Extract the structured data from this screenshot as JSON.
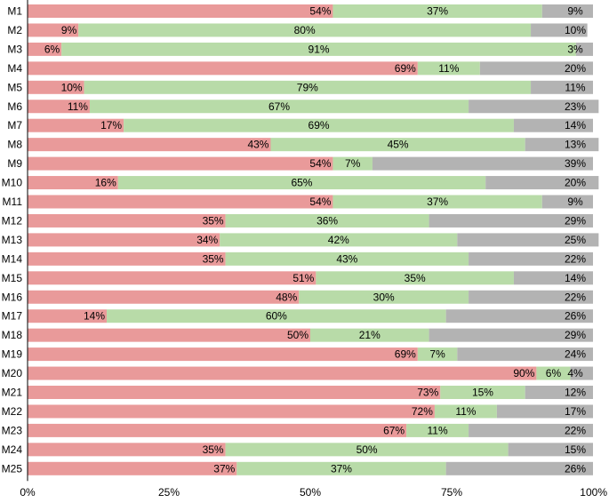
{
  "chart_data": {
    "type": "bar",
    "orientation": "horizontal",
    "stacked": true,
    "percent_axis": true,
    "categories": [
      "M1",
      "M2",
      "M3",
      "M4",
      "M5",
      "M6",
      "M7",
      "M8",
      "M9",
      "M10",
      "M11",
      "M12",
      "M13",
      "M14",
      "M15",
      "M16",
      "M17",
      "M18",
      "M19",
      "M20",
      "M21",
      "M22",
      "M23",
      "M24",
      "M25"
    ],
    "series": [
      {
        "color": "#e99a9a",
        "values": [
          54,
          9,
          6,
          69,
          10,
          11,
          17,
          43,
          54,
          16,
          54,
          35,
          34,
          35,
          51,
          48,
          14,
          50,
          69,
          90,
          73,
          72,
          67,
          35,
          37
        ]
      },
      {
        "color": "#b8dba8",
        "values": [
          37,
          80,
          91,
          11,
          79,
          67,
          69,
          45,
          7,
          65,
          37,
          36,
          42,
          43,
          35,
          30,
          60,
          21,
          7,
          6,
          15,
          11,
          11,
          50,
          37
        ]
      },
      {
        "color": "#b3b3b3",
        "values": [
          9,
          10,
          3,
          20,
          11,
          23,
          14,
          13,
          39,
          20,
          9,
          29,
          25,
          22,
          14,
          22,
          26,
          29,
          24,
          4,
          12,
          17,
          22,
          15,
          26
        ]
      }
    ],
    "xlim": [
      0,
      100
    ],
    "xticks": [
      0,
      25,
      50,
      75,
      100
    ],
    "xtick_labels": [
      "0%",
      "25%",
      "50%",
      "75%",
      "100%"
    ],
    "title": "",
    "xlabel": "",
    "ylabel": "",
    "grid": false,
    "legend": "none"
  }
}
